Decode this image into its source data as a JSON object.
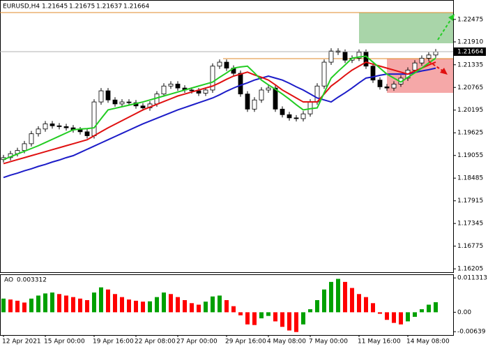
{
  "chart_data": [
    {
      "type": "candlestick",
      "title": "EURUSD,H4",
      "quote": [
        1.21645,
        1.21675,
        1.21637,
        1.21664
      ],
      "current_price": 1.21664,
      "categories": [
        "12 Apr 2021",
        null,
        null,
        null,
        null,
        null,
        "15 Apr 00:00",
        null,
        null,
        null,
        null,
        null,
        null,
        "19 Apr 16:00",
        null,
        null,
        null,
        null,
        null,
        "22 Apr 08:00",
        null,
        null,
        null,
        null,
        null,
        "27 Apr 00:00",
        null,
        null,
        null,
        null,
        null,
        null,
        "29 Apr 16:00",
        null,
        null,
        null,
        null,
        null,
        "4 May 08:00",
        null,
        null,
        null,
        null,
        null,
        "7 May 00:00",
        null,
        null,
        null,
        null,
        null,
        null,
        "11 May 16:00",
        null,
        null,
        null,
        null,
        null,
        null,
        "14 May 08:00",
        null,
        null,
        null,
        null
      ],
      "open": [
        1.1895,
        1.19,
        1.191,
        1.1918,
        1.1935,
        1.196,
        1.1972,
        1.1985,
        1.198,
        1.1978,
        1.1975,
        1.197,
        1.1965,
        1.1955,
        1.204,
        1.2068,
        1.2045,
        1.2035,
        1.204,
        1.2038,
        1.203,
        1.2025,
        1.2035,
        1.206,
        1.208,
        1.2085,
        1.2075,
        1.207,
        1.2068,
        1.2062,
        1.207,
        1.213,
        1.214,
        1.2125,
        1.2112,
        1.206,
        1.2022,
        1.2045,
        1.207,
        1.2075,
        1.2022,
        1.2008,
        1.2,
        1.1998,
        1.201,
        1.204,
        1.208,
        1.214,
        1.2168,
        1.2165,
        1.2145,
        1.215,
        1.2165,
        1.213,
        1.2095,
        1.2078,
        1.2075,
        1.2085,
        1.21,
        1.212,
        1.2138,
        1.215,
        1.2158
      ],
      "high": [
        1.1907,
        1.1917,
        1.1925,
        1.1942,
        1.1967,
        1.1979,
        1.1992,
        1.1992,
        1.1987,
        1.1985,
        1.1982,
        1.1977,
        1.1972,
        1.2047,
        1.2075,
        1.2075,
        1.2052,
        1.2047,
        1.2047,
        1.2045,
        1.2037,
        1.2042,
        1.2067,
        1.2087,
        1.2092,
        1.2092,
        1.2082,
        1.2077,
        1.2075,
        1.2077,
        1.2137,
        1.2147,
        1.2147,
        1.2132,
        1.2119,
        1.2067,
        1.2052,
        1.2077,
        1.2082,
        1.2082,
        1.2029,
        1.2015,
        1.2007,
        1.2017,
        1.2047,
        1.2087,
        1.2147,
        1.2175,
        1.2175,
        1.2172,
        1.2157,
        1.2172,
        1.2172,
        1.2137,
        1.2102,
        1.2085,
        1.2092,
        1.2107,
        1.2127,
        1.2145,
        1.2157,
        1.2165,
        1.2173
      ],
      "low": [
        1.1888,
        1.1893,
        1.1903,
        1.1911,
        1.1928,
        1.1953,
        1.1965,
        1.1973,
        1.1971,
        1.1968,
        1.1963,
        1.1958,
        1.1948,
        1.1948,
        1.2033,
        1.2038,
        1.2028,
        1.2028,
        1.2031,
        1.2023,
        1.2018,
        1.2018,
        1.2028,
        1.2053,
        1.2073,
        1.2068,
        1.2063,
        1.2061,
        1.2055,
        1.2055,
        1.2063,
        1.2123,
        1.2118,
        1.2105,
        1.2053,
        1.2015,
        1.2015,
        1.2038,
        1.2063,
        1.2015,
        1.2001,
        1.1993,
        1.1991,
        1.1991,
        1.2003,
        1.2033,
        1.2073,
        1.2133,
        1.2158,
        1.2138,
        1.2138,
        1.2143,
        1.2123,
        1.2088,
        1.2071,
        1.2068,
        1.2068,
        1.2078,
        1.2093,
        1.2113,
        1.2131,
        1.2143,
        1.2151
      ],
      "close": [
        1.19,
        1.191,
        1.1918,
        1.1935,
        1.196,
        1.1972,
        1.1985,
        1.198,
        1.1978,
        1.1975,
        1.197,
        1.1965,
        1.1955,
        1.204,
        1.2068,
        1.2045,
        1.2035,
        1.204,
        1.2038,
        1.203,
        1.2025,
        1.2035,
        1.206,
        1.208,
        1.2085,
        1.2075,
        1.207,
        1.2068,
        1.2062,
        1.207,
        1.213,
        1.214,
        1.2125,
        1.2112,
        1.206,
        1.2022,
        1.2045,
        1.207,
        1.2075,
        1.2022,
        1.2008,
        1.2,
        1.1998,
        1.201,
        1.204,
        1.208,
        1.214,
        1.2168,
        1.2165,
        1.2145,
        1.215,
        1.2165,
        1.213,
        1.2095,
        1.2078,
        1.2075,
        1.2085,
        1.21,
        1.212,
        1.2138,
        1.215,
        1.2158,
        1.2166
      ],
      "up_color": "#ffffff",
      "down_color": "#000000",
      "lines": [
        {
          "color": "#1c1cc8",
          "values": [
            1.185,
            1.1856,
            1.1861,
            1.1867,
            1.1872,
            1.1878,
            1.1883,
            1.1889,
            1.1894,
            1.19,
            1.1905,
            1.1913,
            1.1921,
            1.1929,
            1.1937,
            1.1945,
            1.1953,
            1.1961,
            1.1969,
            1.1977,
            1.1985,
            1.1992,
            1.1999,
            1.2006,
            1.2013,
            1.202,
            1.2026,
            1.2032,
            1.2038,
            1.2044,
            1.205,
            1.2058,
            1.2067,
            1.2075,
            1.2082,
            1.2088,
            1.2095,
            1.21,
            1.2105,
            1.21,
            1.2095,
            1.2087,
            1.2078,
            1.207,
            1.206,
            1.205,
            1.2045,
            1.204,
            1.2052,
            1.2063,
            1.2075,
            1.2088,
            1.21,
            1.2103,
            1.2107,
            1.211,
            1.211,
            1.211,
            1.211,
            1.2114,
            1.2118,
            1.2121,
            1.2125
          ]
        },
        {
          "color": "#e01010",
          "values": [
            1.1885,
            1.189,
            1.1895,
            1.19,
            1.1905,
            1.191,
            1.1915,
            1.192,
            1.1925,
            1.193,
            1.1935,
            1.194,
            1.1945,
            1.1955,
            1.1965,
            1.1975,
            1.1984,
            1.1993,
            1.2002,
            1.2011,
            1.202,
            1.2027,
            1.2034,
            1.2041,
            1.2048,
            1.2055,
            1.206,
            1.2065,
            1.207,
            1.2075,
            1.208,
            1.2088,
            1.2097,
            1.2105,
            1.211,
            1.2115,
            1.2108,
            1.2102,
            1.2095,
            1.2083,
            1.207,
            1.206,
            1.205,
            1.204,
            1.204,
            1.204,
            1.206,
            1.208,
            1.2093,
            1.2107,
            1.212,
            1.213,
            1.214,
            1.2135,
            1.213,
            1.2125,
            1.212,
            1.2115,
            1.211,
            1.2118,
            1.2125,
            1.2133,
            1.214
          ]
        },
        {
          "color": "#22cc22",
          "values": [
            1.1895,
            1.1902,
            1.1909,
            1.1916,
            1.1923,
            1.193,
            1.1938,
            1.1946,
            1.1954,
            1.1962,
            1.197,
            1.1972,
            1.1973,
            1.1975,
            1.1998,
            1.202,
            1.2024,
            1.2028,
            1.2032,
            1.2036,
            1.204,
            1.2045,
            1.205,
            1.2055,
            1.206,
            1.2065,
            1.207,
            1.2075,
            1.208,
            1.2085,
            1.209,
            1.2102,
            1.2113,
            1.2125,
            1.2128,
            1.213,
            1.2113,
            1.2095,
            1.2083,
            1.2072,
            1.206,
            1.2047,
            1.2033,
            1.202,
            1.2023,
            1.2025,
            1.2063,
            1.21,
            1.2117,
            1.2133,
            1.215,
            1.2153,
            1.2155,
            1.214,
            1.2125,
            1.211,
            1.21,
            1.209,
            1.2102,
            1.2113,
            1.2125,
            1.2138,
            1.215
          ]
        }
      ],
      "ylim": [
        1.1612,
        1.2291
      ],
      "yticks": [
        1.22475,
        {
          "value": 1.2191,
          "label": "1.21910"
        },
        1.21335,
        1.20765,
        1.20195,
        1.19625,
        1.19055,
        1.18485,
        1.17915,
        1.17345,
        1.16775,
        1.16205
      ]
    },
    {
      "type": "bar",
      "title": "AO",
      "current": 0.003312,
      "values": [
        0.0045,
        0.0042,
        0.0038,
        0.0032,
        0.0045,
        0.0055,
        0.0062,
        0.0065,
        0.006,
        0.0055,
        0.005,
        0.0045,
        0.004,
        0.0065,
        0.0082,
        0.0075,
        0.006,
        0.005,
        0.0042,
        0.0038,
        0.0035,
        0.0036,
        0.005,
        0.0065,
        0.006,
        0.005,
        0.004,
        0.003,
        0.0025,
        0.0035,
        0.0052,
        0.0055,
        0.004,
        0.002,
        -0.001,
        -0.004,
        -0.0042,
        -0.002,
        -0.0012,
        -0.003,
        -0.0048,
        -0.006,
        -0.0065,
        -0.004,
        0.001,
        0.004,
        0.0075,
        0.01,
        0.011,
        0.01,
        0.008,
        0.006,
        0.005,
        0.003,
        -0.0005,
        -0.0025,
        -0.0035,
        -0.004,
        -0.003,
        -0.0015,
        0.001,
        0.0025,
        0.003312
      ],
      "up_color": "#00a000",
      "down_color": "#ff0000",
      "ylim": [
        -0.0075,
        0.0125
      ],
      "yticks": [
        0.011313,
        {
          "value": 0,
          "label": "0.00"
        },
        -0.00639
      ]
    }
  ]
}
